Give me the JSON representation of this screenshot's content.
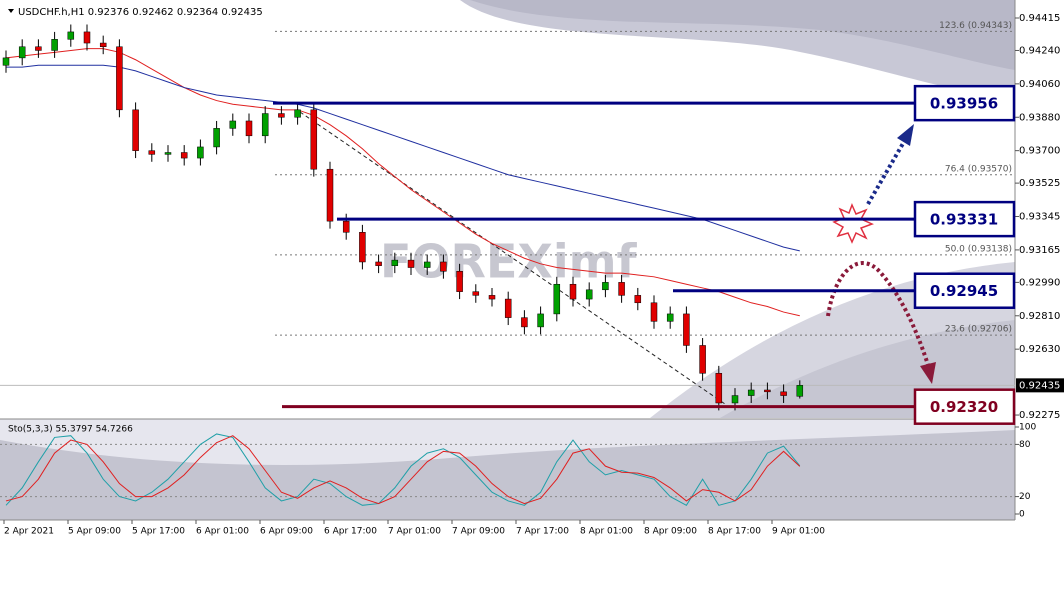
{
  "chart_data": {
    "type": "candlestick",
    "header": "USDCHF.h,H1  0.92376 0.92462 0.92364 0.92435",
    "watermark": "FOREXimf",
    "ylim": [
      0.92259,
      0.94512
    ],
    "yticks": [
      0.94415,
      {
        "value": 0.9424,
        "label": "0.94240"
      },
      {
        "value": 0.9406,
        "label": "0.94060"
      },
      {
        "value": 0.9388,
        "label": "0.93880"
      },
      {
        "value": 0.937,
        "label": "0.93700"
      },
      0.93525,
      0.93345,
      0.93165,
      {
        "value": 0.9299,
        "label": "0.92990"
      },
      {
        "value": 0.9281,
        "label": "0.92810"
      },
      {
        "value": 0.9263,
        "label": "0.92630"
      },
      0.92275
    ],
    "current_price": 0.92435,
    "x_labels": [
      "2 Apr 2021",
      "5 Apr 09:00",
      "5 Apr 17:00",
      "6 Apr 01:00",
      "6 Apr 09:00",
      "6 Apr 17:00",
      "7 Apr 01:00",
      "7 Apr 09:00",
      "7 Apr 17:00",
      "8 Apr 01:00",
      "8 Apr 09:00",
      "8 Apr 17:00",
      "9 Apr 01:00"
    ],
    "candles": {
      "open": [
        0.9416,
        0.942,
        0.9426,
        0.9424,
        0.943,
        0.9434,
        0.9428,
        0.9426,
        0.9392,
        0.937,
        0.9368,
        0.9369,
        0.9366,
        0.9372,
        0.9382,
        0.9386,
        0.9378,
        0.939,
        0.9388,
        0.9392,
        0.936,
        0.9332,
        0.9326,
        0.931,
        0.9308,
        0.9311,
        0.9307,
        0.931,
        0.9305,
        0.9294,
        0.9292,
        0.929,
        0.928,
        0.9275,
        0.9282,
        0.9298,
        0.929,
        0.9295,
        0.9299,
        0.9292,
        0.9288,
        0.9278,
        0.9282,
        0.9265,
        0.925,
        0.9234,
        0.9238,
        0.9241,
        0.924,
        0.92376
      ],
      "high": [
        0.9424,
        0.943,
        0.943,
        0.9434,
        0.9438,
        0.9438,
        0.9432,
        0.943,
        0.9396,
        0.9374,
        0.9373,
        0.9373,
        0.9376,
        0.9386,
        0.939,
        0.939,
        0.9394,
        0.9394,
        0.9396,
        0.9396,
        0.9364,
        0.9336,
        0.933,
        0.9314,
        0.9315,
        0.9315,
        0.9314,
        0.9314,
        0.9309,
        0.9298,
        0.9296,
        0.9294,
        0.9284,
        0.9286,
        0.9302,
        0.9302,
        0.9299,
        0.9303,
        0.9303,
        0.9296,
        0.9292,
        0.9286,
        0.9286,
        0.9269,
        0.9254,
        0.9242,
        0.9245,
        0.9245,
        0.9244,
        0.92462
      ],
      "low": [
        0.9412,
        0.9416,
        0.942,
        0.942,
        0.9426,
        0.9424,
        0.9422,
        0.9388,
        0.9366,
        0.9364,
        0.9364,
        0.9362,
        0.9362,
        0.9368,
        0.9378,
        0.9374,
        0.9374,
        0.9384,
        0.9384,
        0.9356,
        0.9328,
        0.9322,
        0.9306,
        0.9304,
        0.9304,
        0.9303,
        0.9303,
        0.9301,
        0.929,
        0.9288,
        0.9286,
        0.9276,
        0.9271,
        0.9271,
        0.9278,
        0.9286,
        0.9286,
        0.9291,
        0.9288,
        0.9284,
        0.9274,
        0.9274,
        0.9261,
        0.9246,
        0.923,
        0.923,
        0.9234,
        0.9236,
        0.9234,
        0.92364
      ],
      "close": [
        0.942,
        0.9426,
        0.9424,
        0.943,
        0.9434,
        0.9428,
        0.9426,
        0.9392,
        0.937,
        0.9368,
        0.9369,
        0.9366,
        0.9372,
        0.9382,
        0.9386,
        0.9378,
        0.939,
        0.9388,
        0.9392,
        0.936,
        0.9332,
        0.9326,
        0.931,
        0.9308,
        0.9311,
        0.9307,
        0.931,
        0.9305,
        0.9294,
        0.9292,
        0.929,
        0.928,
        0.9275,
        0.9282,
        0.9298,
        0.929,
        0.9295,
        0.9299,
        0.9292,
        0.9288,
        0.9278,
        0.9282,
        0.9265,
        0.925,
        0.9234,
        0.9238,
        0.9241,
        0.924,
        0.9238,
        0.92435
      ],
      "up_color": "#00a000",
      "down_color": "#e00000"
    },
    "moving_averages": [
      {
        "color": "#e02020",
        "values": [
          0.942,
          0.9421,
          0.9422,
          0.9423,
          0.9424,
          0.9425,
          0.9425,
          0.9423,
          0.9419,
          0.9414,
          0.9409,
          0.9404,
          0.94,
          0.9397,
          0.9395,
          0.9394,
          0.9393,
          0.9392,
          0.9392,
          0.9389,
          0.9384,
          0.9378,
          0.9371,
          0.9363,
          0.9356,
          0.9349,
          0.9343,
          0.9337,
          0.9331,
          0.9325,
          0.932,
          0.9316,
          0.9312,
          0.9309,
          0.9307,
          0.9306,
          0.9305,
          0.9304,
          0.9304,
          0.9303,
          0.9302,
          0.93,
          0.9298,
          0.9296,
          0.9294,
          0.9291,
          0.9288,
          0.9286,
          0.9283,
          0.9281
        ]
      },
      {
        "color": "#2030a0",
        "values": [
          0.9415,
          0.9415,
          0.9416,
          0.9416,
          0.9416,
          0.9416,
          0.9416,
          0.9415,
          0.9413,
          0.941,
          0.9407,
          0.9404,
          0.9402,
          0.94,
          0.9399,
          0.9398,
          0.9397,
          0.9396,
          0.9395,
          0.9393,
          0.939,
          0.9387,
          0.9384,
          0.9381,
          0.9378,
          0.9375,
          0.9372,
          0.9369,
          0.9366,
          0.9363,
          0.936,
          0.9357,
          0.9355,
          0.9353,
          0.9351,
          0.9349,
          0.9347,
          0.9345,
          0.9343,
          0.9341,
          0.9339,
          0.9337,
          0.9335,
          0.9333,
          0.933,
          0.9327,
          0.9324,
          0.9321,
          0.9318,
          0.9316
        ]
      }
    ],
    "fib_levels": [
      {
        "label": "123.6 (0.94343)",
        "price": 0.94343
      },
      {
        "label": "76.4 (0.93570)",
        "price": 0.9357
      },
      {
        "label": "50.0 (0.93138)",
        "price": 0.93138
      },
      {
        "label": "23.6 (0.92706)",
        "price": 0.92706
      }
    ],
    "levels": [
      {
        "value": 0.93956,
        "label": "0.93956",
        "color": "#000080"
      },
      {
        "value": 0.93331,
        "label": "0.93331",
        "color": "#000080"
      },
      {
        "value": 0.92945,
        "label": "0.92945",
        "color": "#000080"
      },
      {
        "value": 0.9232,
        "label": "0.92320",
        "color": "#800020"
      }
    ],
    "stochastic": {
      "label": "Sto(5,3,3) 55.3797 54.7266",
      "ylim": [
        0,
        100
      ],
      "yticks": [
        0,
        20,
        80,
        100
      ],
      "series": [
        {
          "color": "#20a0a8",
          "values": [
            10,
            30,
            60,
            88,
            90,
            70,
            40,
            20,
            15,
            25,
            40,
            60,
            80,
            92,
            88,
            60,
            30,
            15,
            20,
            40,
            35,
            20,
            10,
            12,
            30,
            55,
            70,
            75,
            65,
            45,
            25,
            15,
            10,
            25,
            60,
            85,
            60,
            45,
            50,
            45,
            40,
            20,
            10,
            40,
            10,
            15,
            40,
            70,
            78,
            55.3797
          ]
        },
        {
          "color": "#e02020",
          "values": [
            15,
            20,
            40,
            70,
            85,
            80,
            60,
            35,
            20,
            20,
            30,
            45,
            65,
            82,
            90,
            75,
            50,
            25,
            18,
            30,
            38,
            30,
            18,
            12,
            20,
            40,
            60,
            72,
            70,
            55,
            35,
            20,
            12,
            18,
            40,
            70,
            75,
            55,
            48,
            47,
            42,
            30,
            15,
            28,
            25,
            15,
            28,
            55,
            72,
            54.7266
          ]
        }
      ]
    }
  }
}
